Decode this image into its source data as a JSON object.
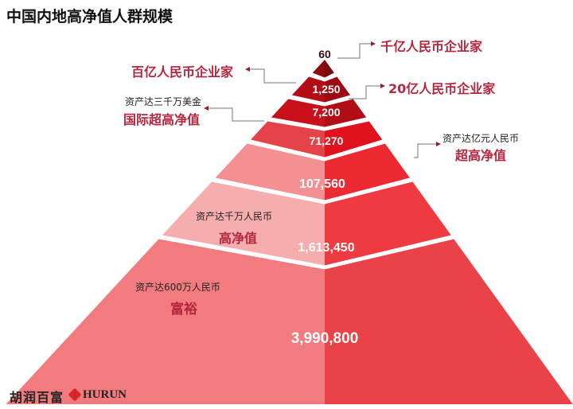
{
  "title": "中国内地高净值人群规模",
  "tiers": [
    {
      "value": "60",
      "colors": [
        "#8e0b12",
        "#7a0a10"
      ]
    },
    {
      "value": "1,250",
      "colors": [
        "#b30c16",
        "#9c0a12"
      ]
    },
    {
      "value": "7,200",
      "colors": [
        "#c8101b",
        "#b00d16"
      ]
    },
    {
      "value": "71,270",
      "colors": [
        "#e5434a",
        "#e0121e"
      ]
    },
    {
      "value": "107,560",
      "colors": [
        "#f29092",
        "#ec2a32"
      ]
    },
    {
      "value": "1,613,450",
      "colors": [
        "#f6adae",
        "#ee3a40"
      ]
    },
    {
      "value": "3,990,800",
      "colors": [
        "#f17b7e",
        "#e94349"
      ]
    }
  ],
  "labels": {
    "qianyi": "千亿人民币企业家",
    "baiyi": "百亿人民币企业家",
    "ershiyi": "20亿人民币企业家",
    "intl_sub": "资产达三千万美金",
    "intl": "国际超高净值",
    "uhnw_sub": "资产达亿元人民币",
    "uhnw": "超高净值",
    "hnw_sub": "资产达千万人民币",
    "hnw": "高净值",
    "affluent_sub": "资产达600万人民币",
    "affluent": "富裕"
  },
  "brand": {
    "cn": "胡润百富",
    "en": "HURUN"
  },
  "accent": "#b5263f"
}
